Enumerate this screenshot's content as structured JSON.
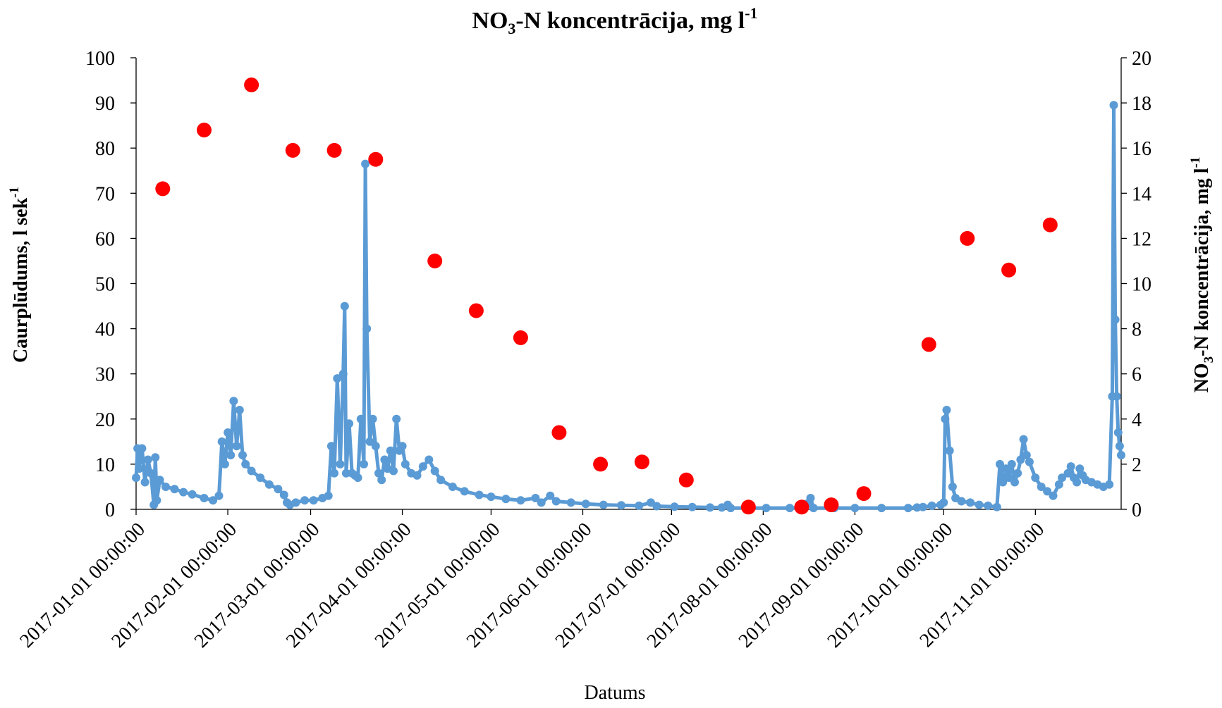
{
  "chart_data": {
    "type": "line",
    "title": {
      "main": "NO",
      "sub": "3",
      "mid": "-N koncentrācija, mg l",
      "sup": "-1"
    },
    "xlabel": "Datums",
    "ylabel_left": {
      "main": "Caurplūdums, l sek",
      "sup": "-1"
    },
    "ylabel_right": {
      "main": "NO",
      "sub": "3",
      "mid": "-N koncentrācija, mg l",
      "sup": "-1"
    },
    "x_range": [
      "2017-01-01",
      "2017-11-30"
    ],
    "ylim_left": [
      0,
      100
    ],
    "ylim_right": [
      0,
      20
    ],
    "x_ticks": [
      "2017-01-01 00:00:00",
      "2017-02-01 00:00:00",
      "2017-03-01 00:00:00",
      "2017-04-01 00:00:00",
      "2017-05-01 00:00:00",
      "2017-06-01 00:00:00",
      "2017-07-01 00:00:00",
      "2017-08-01 00:00:00",
      "2017-09-01 00:00:00",
      "2017-10-01 00:00:00",
      "2017-11-01 00:00:00"
    ],
    "y_ticks_left": [
      "0",
      "10",
      "20",
      "30",
      "40",
      "50",
      "60",
      "70",
      "80",
      "90",
      "100"
    ],
    "y_ticks_right": [
      "0",
      "2",
      "4",
      "6",
      "8",
      "10",
      "12",
      "14",
      "16",
      "18",
      "20"
    ],
    "grid": false,
    "legend": "none",
    "series": [
      {
        "axis": "left",
        "style": "line-with-markers",
        "color": "#5b9bd5",
        "points": [
          [
            "2017-01-01",
            7
          ],
          [
            "2017-01-01T12:00",
            13.5
          ],
          [
            "2017-01-02",
            9
          ],
          [
            "2017-01-03",
            13.5
          ],
          [
            "2017-01-04",
            6
          ],
          [
            "2017-01-05",
            11
          ],
          [
            "2017-01-06",
            8
          ],
          [
            "2017-01-07",
            1
          ],
          [
            "2017-01-07T12:00",
            11.5
          ],
          [
            "2017-01-08",
            2
          ],
          [
            "2017-01-09",
            6.5
          ],
          [
            "2017-01-11",
            5
          ],
          [
            "2017-01-14",
            4.5
          ],
          [
            "2017-01-17",
            3.8
          ],
          [
            "2017-01-20",
            3.3
          ],
          [
            "2017-01-24",
            2.5
          ],
          [
            "2017-01-27",
            2
          ],
          [
            "2017-01-29",
            3
          ],
          [
            "2017-01-30",
            15
          ],
          [
            "2017-01-31",
            10
          ],
          [
            "2017-02-01",
            17
          ],
          [
            "2017-02-02",
            12
          ],
          [
            "2017-02-03",
            24
          ],
          [
            "2017-02-04",
            14
          ],
          [
            "2017-02-05",
            22
          ],
          [
            "2017-02-06",
            12
          ],
          [
            "2017-02-07",
            10
          ],
          [
            "2017-02-09",
            8.5
          ],
          [
            "2017-02-12",
            7
          ],
          [
            "2017-02-15",
            5.5
          ],
          [
            "2017-02-18",
            4.5
          ],
          [
            "2017-02-20",
            3.2
          ],
          [
            "2017-02-21",
            1.5
          ],
          [
            "2017-02-22",
            1
          ],
          [
            "2017-02-24",
            1.5
          ],
          [
            "2017-02-27",
            2
          ],
          [
            "2017-03-02",
            2
          ],
          [
            "2017-03-05",
            2.5
          ],
          [
            "2017-03-07",
            3
          ],
          [
            "2017-03-08",
            14
          ],
          [
            "2017-03-09",
            8
          ],
          [
            "2017-03-10",
            29
          ],
          [
            "2017-03-11",
            10
          ],
          [
            "2017-03-12",
            30
          ],
          [
            "2017-03-12T12:00",
            45
          ],
          [
            "2017-03-13",
            8
          ],
          [
            "2017-03-14",
            19
          ],
          [
            "2017-03-15",
            8
          ],
          [
            "2017-03-16",
            7.5
          ],
          [
            "2017-03-17",
            7
          ],
          [
            "2017-03-18",
            20
          ],
          [
            "2017-03-19",
            10
          ],
          [
            "2017-03-19T12:00",
            76.5
          ],
          [
            "2017-03-20",
            40
          ],
          [
            "2017-03-21",
            15
          ],
          [
            "2017-03-22",
            20
          ],
          [
            "2017-03-23",
            14
          ],
          [
            "2017-03-24",
            8
          ],
          [
            "2017-03-25",
            6.5
          ],
          [
            "2017-03-26",
            11
          ],
          [
            "2017-03-27",
            9
          ],
          [
            "2017-03-28",
            13
          ],
          [
            "2017-03-29",
            8.5
          ],
          [
            "2017-03-30",
            20
          ],
          [
            "2017-03-31",
            13
          ],
          [
            "2017-04-01",
            14
          ],
          [
            "2017-04-02",
            10
          ],
          [
            "2017-04-04",
            8
          ],
          [
            "2017-04-06",
            7.5
          ],
          [
            "2017-04-08",
            9.5
          ],
          [
            "2017-04-10",
            11
          ],
          [
            "2017-04-12",
            8.5
          ],
          [
            "2017-04-14",
            6.5
          ],
          [
            "2017-04-18",
            5
          ],
          [
            "2017-04-22",
            4
          ],
          [
            "2017-04-27",
            3.2
          ],
          [
            "2017-05-01",
            2.8
          ],
          [
            "2017-05-06",
            2.3
          ],
          [
            "2017-05-11",
            2
          ],
          [
            "2017-05-16",
            2.5
          ],
          [
            "2017-05-18",
            1.5
          ],
          [
            "2017-05-21",
            3
          ],
          [
            "2017-05-23",
            1.8
          ],
          [
            "2017-05-28",
            1.5
          ],
          [
            "2017-06-02",
            1.2
          ],
          [
            "2017-06-08",
            1
          ],
          [
            "2017-06-14",
            0.9
          ],
          [
            "2017-06-20",
            0.8
          ],
          [
            "2017-06-24",
            1.5
          ],
          [
            "2017-06-26",
            0.7
          ],
          [
            "2017-07-02",
            0.6
          ],
          [
            "2017-07-08",
            0.5
          ],
          [
            "2017-07-14",
            0.4
          ],
          [
            "2017-07-18",
            0.4
          ],
          [
            "2017-07-20",
            1
          ],
          [
            "2017-07-21",
            0.3
          ],
          [
            "2017-07-27",
            0.3
          ],
          [
            "2017-08-02",
            0.3
          ],
          [
            "2017-08-10",
            0.3
          ],
          [
            "2017-08-15",
            0.3
          ],
          [
            "2017-08-16",
            1.3
          ],
          [
            "2017-08-17",
            2.5
          ],
          [
            "2017-08-18",
            0.3
          ],
          [
            "2017-08-25",
            0.3
          ],
          [
            "2017-09-01",
            0.3
          ],
          [
            "2017-09-10",
            0.3
          ],
          [
            "2017-09-19",
            0.3
          ],
          [
            "2017-09-22",
            0.4
          ],
          [
            "2017-09-24",
            0.5
          ],
          [
            "2017-09-27",
            0.8
          ],
          [
            "2017-09-30",
            1
          ],
          [
            "2017-10-01",
            1.5
          ],
          [
            "2017-10-01T12:00",
            20
          ],
          [
            "2017-10-02",
            22
          ],
          [
            "2017-10-03",
            13
          ],
          [
            "2017-10-04",
            5
          ],
          [
            "2017-10-05",
            2.5
          ],
          [
            "2017-10-07",
            1.8
          ],
          [
            "2017-10-10",
            1.5
          ],
          [
            "2017-10-13",
            1
          ],
          [
            "2017-10-16",
            0.8
          ],
          [
            "2017-10-19",
            0.5
          ],
          [
            "2017-10-20",
            10
          ],
          [
            "2017-10-21",
            6
          ],
          [
            "2017-10-22",
            9
          ],
          [
            "2017-10-23",
            7
          ],
          [
            "2017-10-24",
            10
          ],
          [
            "2017-10-25",
            6
          ],
          [
            "2017-10-26",
            8
          ],
          [
            "2017-10-27",
            11
          ],
          [
            "2017-10-28",
            15.5
          ],
          [
            "2017-10-29",
            12
          ],
          [
            "2017-10-30",
            10.5
          ],
          [
            "2017-11-01",
            7
          ],
          [
            "2017-11-03",
            5
          ],
          [
            "2017-11-05",
            4
          ],
          [
            "2017-11-07",
            3
          ],
          [
            "2017-11-09",
            5.5
          ],
          [
            "2017-11-10",
            7
          ],
          [
            "2017-11-12",
            8
          ],
          [
            "2017-11-13",
            9.5
          ],
          [
            "2017-11-14",
            7
          ],
          [
            "2017-11-15",
            6
          ],
          [
            "2017-11-16",
            9
          ],
          [
            "2017-11-17",
            7.5
          ],
          [
            "2017-11-18",
            6.5
          ],
          [
            "2017-11-20",
            6
          ],
          [
            "2017-11-22",
            5.5
          ],
          [
            "2017-11-24",
            5
          ],
          [
            "2017-11-26",
            5.5
          ],
          [
            "2017-11-27",
            25
          ],
          [
            "2017-11-27T12:00",
            89.5
          ],
          [
            "2017-11-28",
            42
          ],
          [
            "2017-11-28T12:00",
            25
          ],
          [
            "2017-11-29",
            17
          ],
          [
            "2017-11-29T12:00",
            14
          ],
          [
            "2017-11-30",
            12
          ]
        ]
      },
      {
        "axis": "right",
        "style": "markers",
        "color": "#ff0000",
        "points": [
          [
            "2017-01-10",
            14.2
          ],
          [
            "2017-01-24",
            16.8
          ],
          [
            "2017-02-09",
            18.8
          ],
          [
            "2017-02-23",
            15.9
          ],
          [
            "2017-03-09",
            15.9
          ],
          [
            "2017-03-23",
            15.5
          ],
          [
            "2017-04-12",
            11
          ],
          [
            "2017-04-26",
            8.8
          ],
          [
            "2017-05-11",
            7.6
          ],
          [
            "2017-05-24",
            3.4
          ],
          [
            "2017-06-07",
            2
          ],
          [
            "2017-06-21",
            2.1
          ],
          [
            "2017-07-06",
            1.3
          ],
          [
            "2017-07-27",
            0.1
          ],
          [
            "2017-08-14",
            0.1
          ],
          [
            "2017-08-24",
            0.2
          ],
          [
            "2017-09-04",
            0.7
          ],
          [
            "2017-09-26",
            7.3
          ],
          [
            "2017-10-09",
            12
          ],
          [
            "2017-10-23",
            10.6
          ],
          [
            "2017-11-06",
            12.6
          ]
        ]
      }
    ]
  }
}
